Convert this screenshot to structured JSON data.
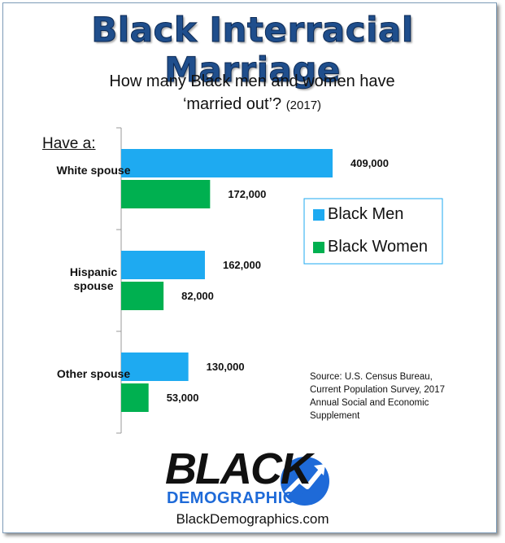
{
  "chart_data": {
    "type": "bar",
    "orientation": "horizontal",
    "title": "Black Interracial Marriage",
    "subtitle": "How many Black men and women have ‘married out’?",
    "subtitle_note": "(2017)",
    "category_heading": "Have a:",
    "categories": [
      "White spouse",
      "Hispanic spouse",
      "Other spouse"
    ],
    "series": [
      {
        "name": "Black Men",
        "color": "#1eaaf1",
        "values": [
          409000,
          162000,
          130000
        ],
        "value_labels": [
          "409,000",
          "162,000",
          "130,000"
        ]
      },
      {
        "name": "Black Women",
        "color": "#00b050",
        "values": [
          172000,
          82000,
          53000
        ],
        "value_labels": [
          "172,000",
          "82,000",
          "53,000"
        ]
      }
    ],
    "legend": "right",
    "source": [
      "Source: U.S. Census Bureau,",
      "Current Population Survey, 2017",
      "Annual Social and Economic",
      "Supplement"
    ],
    "logo": {
      "top": "BLACK",
      "bottom": "DEMOGRAPHICS"
    },
    "url": "BlackDemographics.com"
  }
}
